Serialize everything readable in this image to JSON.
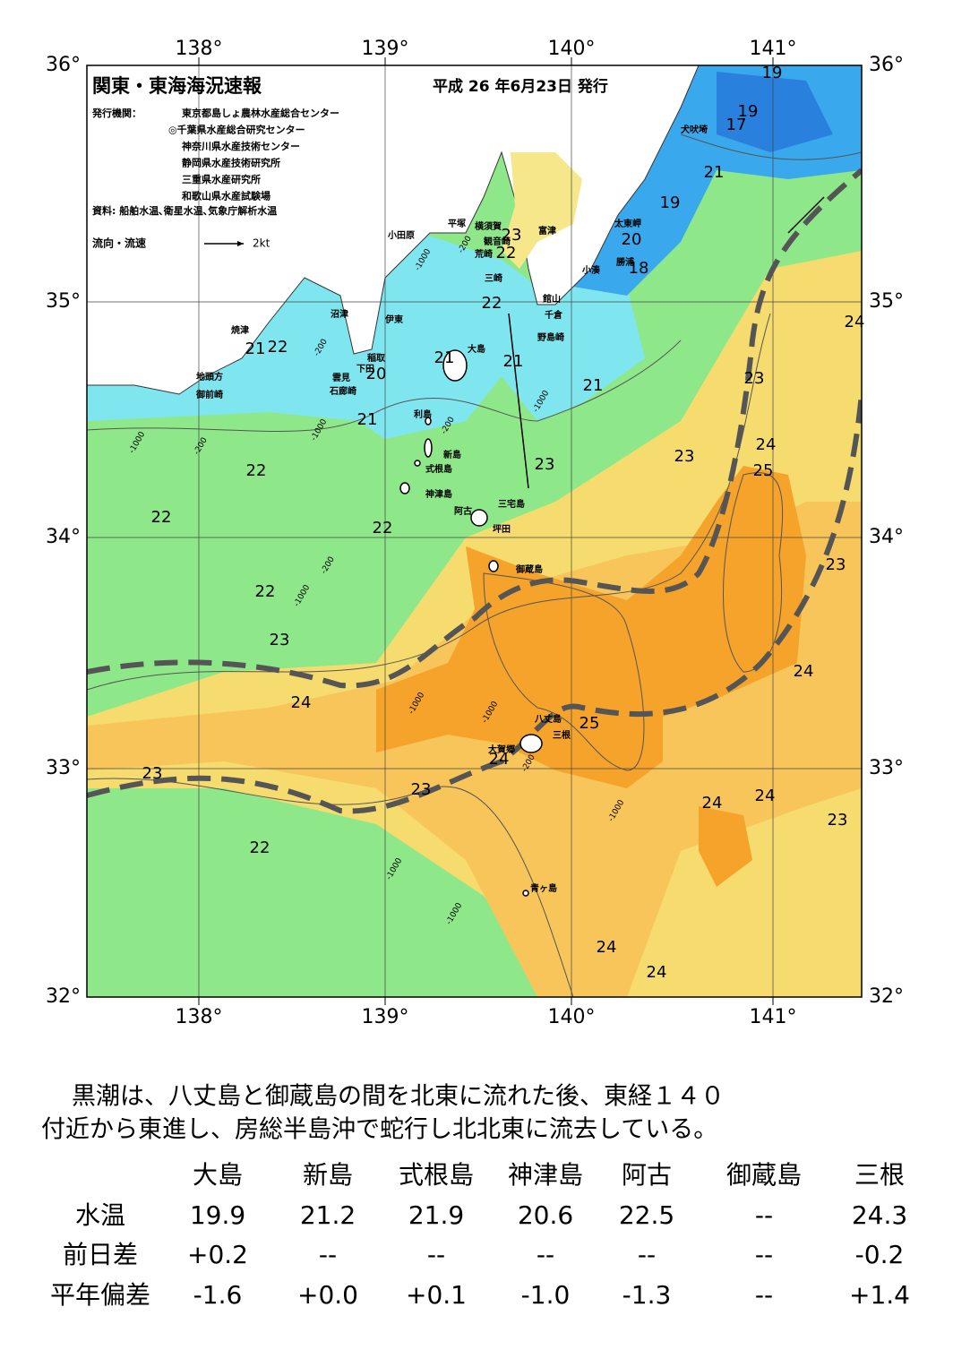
{
  "map": {
    "title": "関東・東海海況速報",
    "issued": "平成 26 年6月23日 発行",
    "publisher_label": "発行機関：",
    "publishers": [
      "東京都島しょ農林水産総合センター",
      "◎千葉県水産総合研究センター",
      "神奈川県水産技術センター",
      "静岡県水産技術研究所",
      "三重県水産研究所",
      "和歌山県水産試験場"
    ],
    "source": "資料: 船舶水温､衛星水温､気象庁解析水温",
    "legend": {
      "label": "流向・流速",
      "speed": "2kt"
    },
    "lat_labels": [
      "36°",
      "35°",
      "34°",
      "33°",
      "32°"
    ],
    "lon_labels": [
      "138°",
      "139°",
      "140°",
      "141°"
    ],
    "places": [
      "犬吠埼",
      "太東岬",
      "勝浦",
      "小湊",
      "富津",
      "横須賀",
      "観音崎",
      "荒崎",
      "三崎",
      "平塚",
      "小田原",
      "館山",
      "千倉",
      "野島崎",
      "大島",
      "稲取",
      "下田",
      "雲見",
      "石廊崎",
      "沼津",
      "伊東",
      "焼津",
      "地頭方",
      "御前崎",
      "利島",
      "新島",
      "式根島",
      "神津島",
      "三宅島",
      "阿古",
      "坪田",
      "御蔵島",
      "八丈島",
      "三根",
      "大賀郷",
      "青ヶ島"
    ],
    "temperature_labels": [
      "19",
      "19",
      "17",
      "21",
      "19",
      "20",
      "18",
      "23",
      "22",
      "22",
      "21",
      "22",
      "20",
      "21",
      "21",
      "21",
      "21",
      "23",
      "23",
      "23",
      "24",
      "25",
      "24",
      "22",
      "22",
      "22",
      "22",
      "23",
      "23",
      "24",
      "24",
      "25",
      "24",
      "23",
      "23",
      "24",
      "24",
      "23",
      "22",
      "24",
      "24"
    ],
    "depth_labels": [
      "-200",
      "-1000",
      "-200",
      "-1000",
      "-200",
      "-1000",
      "-200",
      "-1000",
      "-200",
      "-1000",
      "-1000",
      "-1000",
      "-200",
      "-1000",
      "-1000",
      "-1000"
    ]
  },
  "text": {
    "lines": [
      "黒潮は、八丈島と御蔵島の間を北東に流れた後、東経１４０",
      "付近から東進し、房総半島沖で蛇行し北北東に流去している。"
    ]
  },
  "table": {
    "columns": [
      "大島",
      "新島",
      "式根島",
      "神津島",
      "阿古",
      "御蔵島",
      "三根"
    ],
    "rows": [
      {
        "label": "水温",
        "cells": [
          "19.9",
          "21.2",
          "21.9",
          "20.6",
          "22.5",
          "--",
          "24.3"
        ]
      },
      {
        "label": "前日差",
        "cells": [
          "+0.2",
          "--",
          "--",
          "--",
          "--",
          "--",
          "-0.2"
        ]
      },
      {
        "label": "平年偏差",
        "cells": [
          "-1.6",
          "+0.0",
          "+0.1",
          "-1.0",
          "-1.3",
          "--",
          "+1.4"
        ]
      }
    ]
  }
}
